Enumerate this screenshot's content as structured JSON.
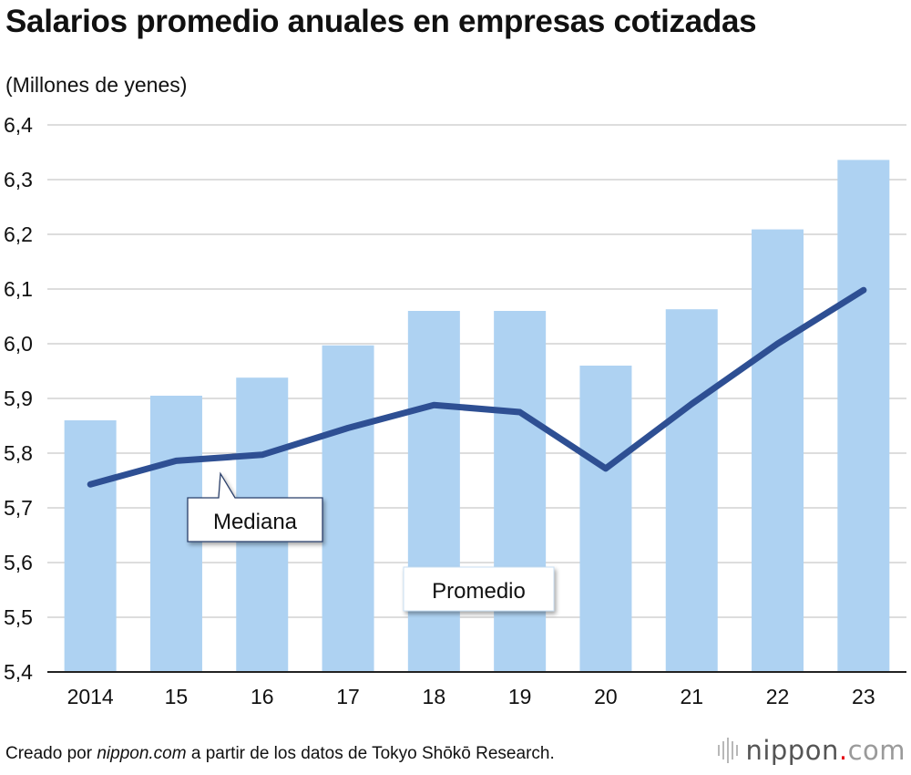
{
  "title": "Salarios promedio anuales en empresas cotizadas",
  "colors": {
    "bar": "#aed2f2",
    "line": "#2e4f93",
    "grid": "#bbbbbb",
    "text": "#111111"
  },
  "chart_data": {
    "type": "bar",
    "title": "Salarios promedio anuales en empresas cotizadas",
    "ylabel": "(Millones de yenes)",
    "xlabel": "",
    "ylim": [
      5.4,
      6.4
    ],
    "y_ticks": [
      "5,4",
      "5,5",
      "5,6",
      "5,7",
      "5,8",
      "5,9",
      "6,0",
      "6,1",
      "6,2",
      "6,3",
      "6,4"
    ],
    "categories": [
      "2014",
      "15",
      "16",
      "17",
      "18",
      "19",
      "20",
      "21",
      "22",
      "23"
    ],
    "series": [
      {
        "name": "Promedio",
        "type": "bar",
        "values": [
          5.86,
          5.905,
          5.938,
          5.997,
          6.06,
          6.06,
          5.96,
          6.063,
          6.209,
          6.336
        ]
      },
      {
        "name": "Mediana",
        "type": "line",
        "values": [
          5.743,
          5.786,
          5.797,
          5.846,
          5.888,
          5.875,
          5.772,
          5.89,
          6.0,
          6.098
        ]
      }
    ],
    "annotations": {
      "median_label": "Mediana",
      "average_label": "Promedio"
    }
  },
  "footer": {
    "prefix": "Creado por ",
    "site": "nippon.com",
    "suffix": " a partir de los datos de Tokyo Shōkō Research."
  },
  "brand": {
    "name": "nippon",
    "dot": ".",
    "tld": "com"
  }
}
